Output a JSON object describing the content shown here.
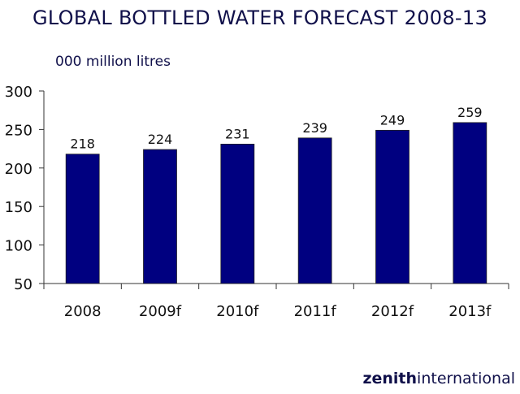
{
  "chart_data": {
    "type": "bar",
    "title": "GLOBAL BOTTLED WATER FORECAST 2008-13",
    "ylabel": "000 million litres",
    "xlabel": "",
    "categories": [
      "2008",
      "2009f",
      "2010f",
      "2011f",
      "2012f",
      "2013f"
    ],
    "values": [
      218,
      224,
      231,
      239,
      249,
      259
    ],
    "ylim": [
      50,
      300
    ],
    "yticks": [
      50,
      100,
      150,
      200,
      250,
      300
    ],
    "grid": false,
    "bar_color": "#000080",
    "data_labels": true
  },
  "logo": {
    "bold": "zenith",
    "regular": "international"
  }
}
